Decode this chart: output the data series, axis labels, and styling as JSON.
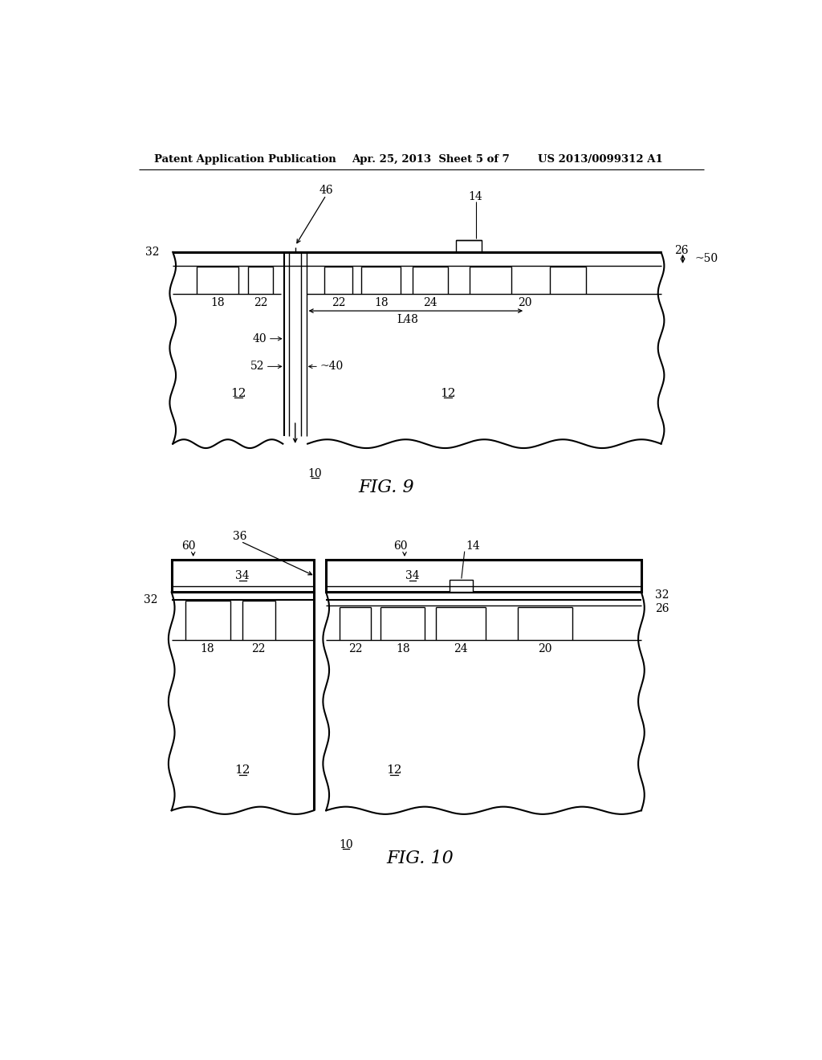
{
  "header_left": "Patent Application Publication",
  "header_mid": "Apr. 25, 2013  Sheet 5 of 7",
  "header_right": "US 2013/0099312 A1",
  "background": "#ffffff",
  "line_color": "#000000"
}
